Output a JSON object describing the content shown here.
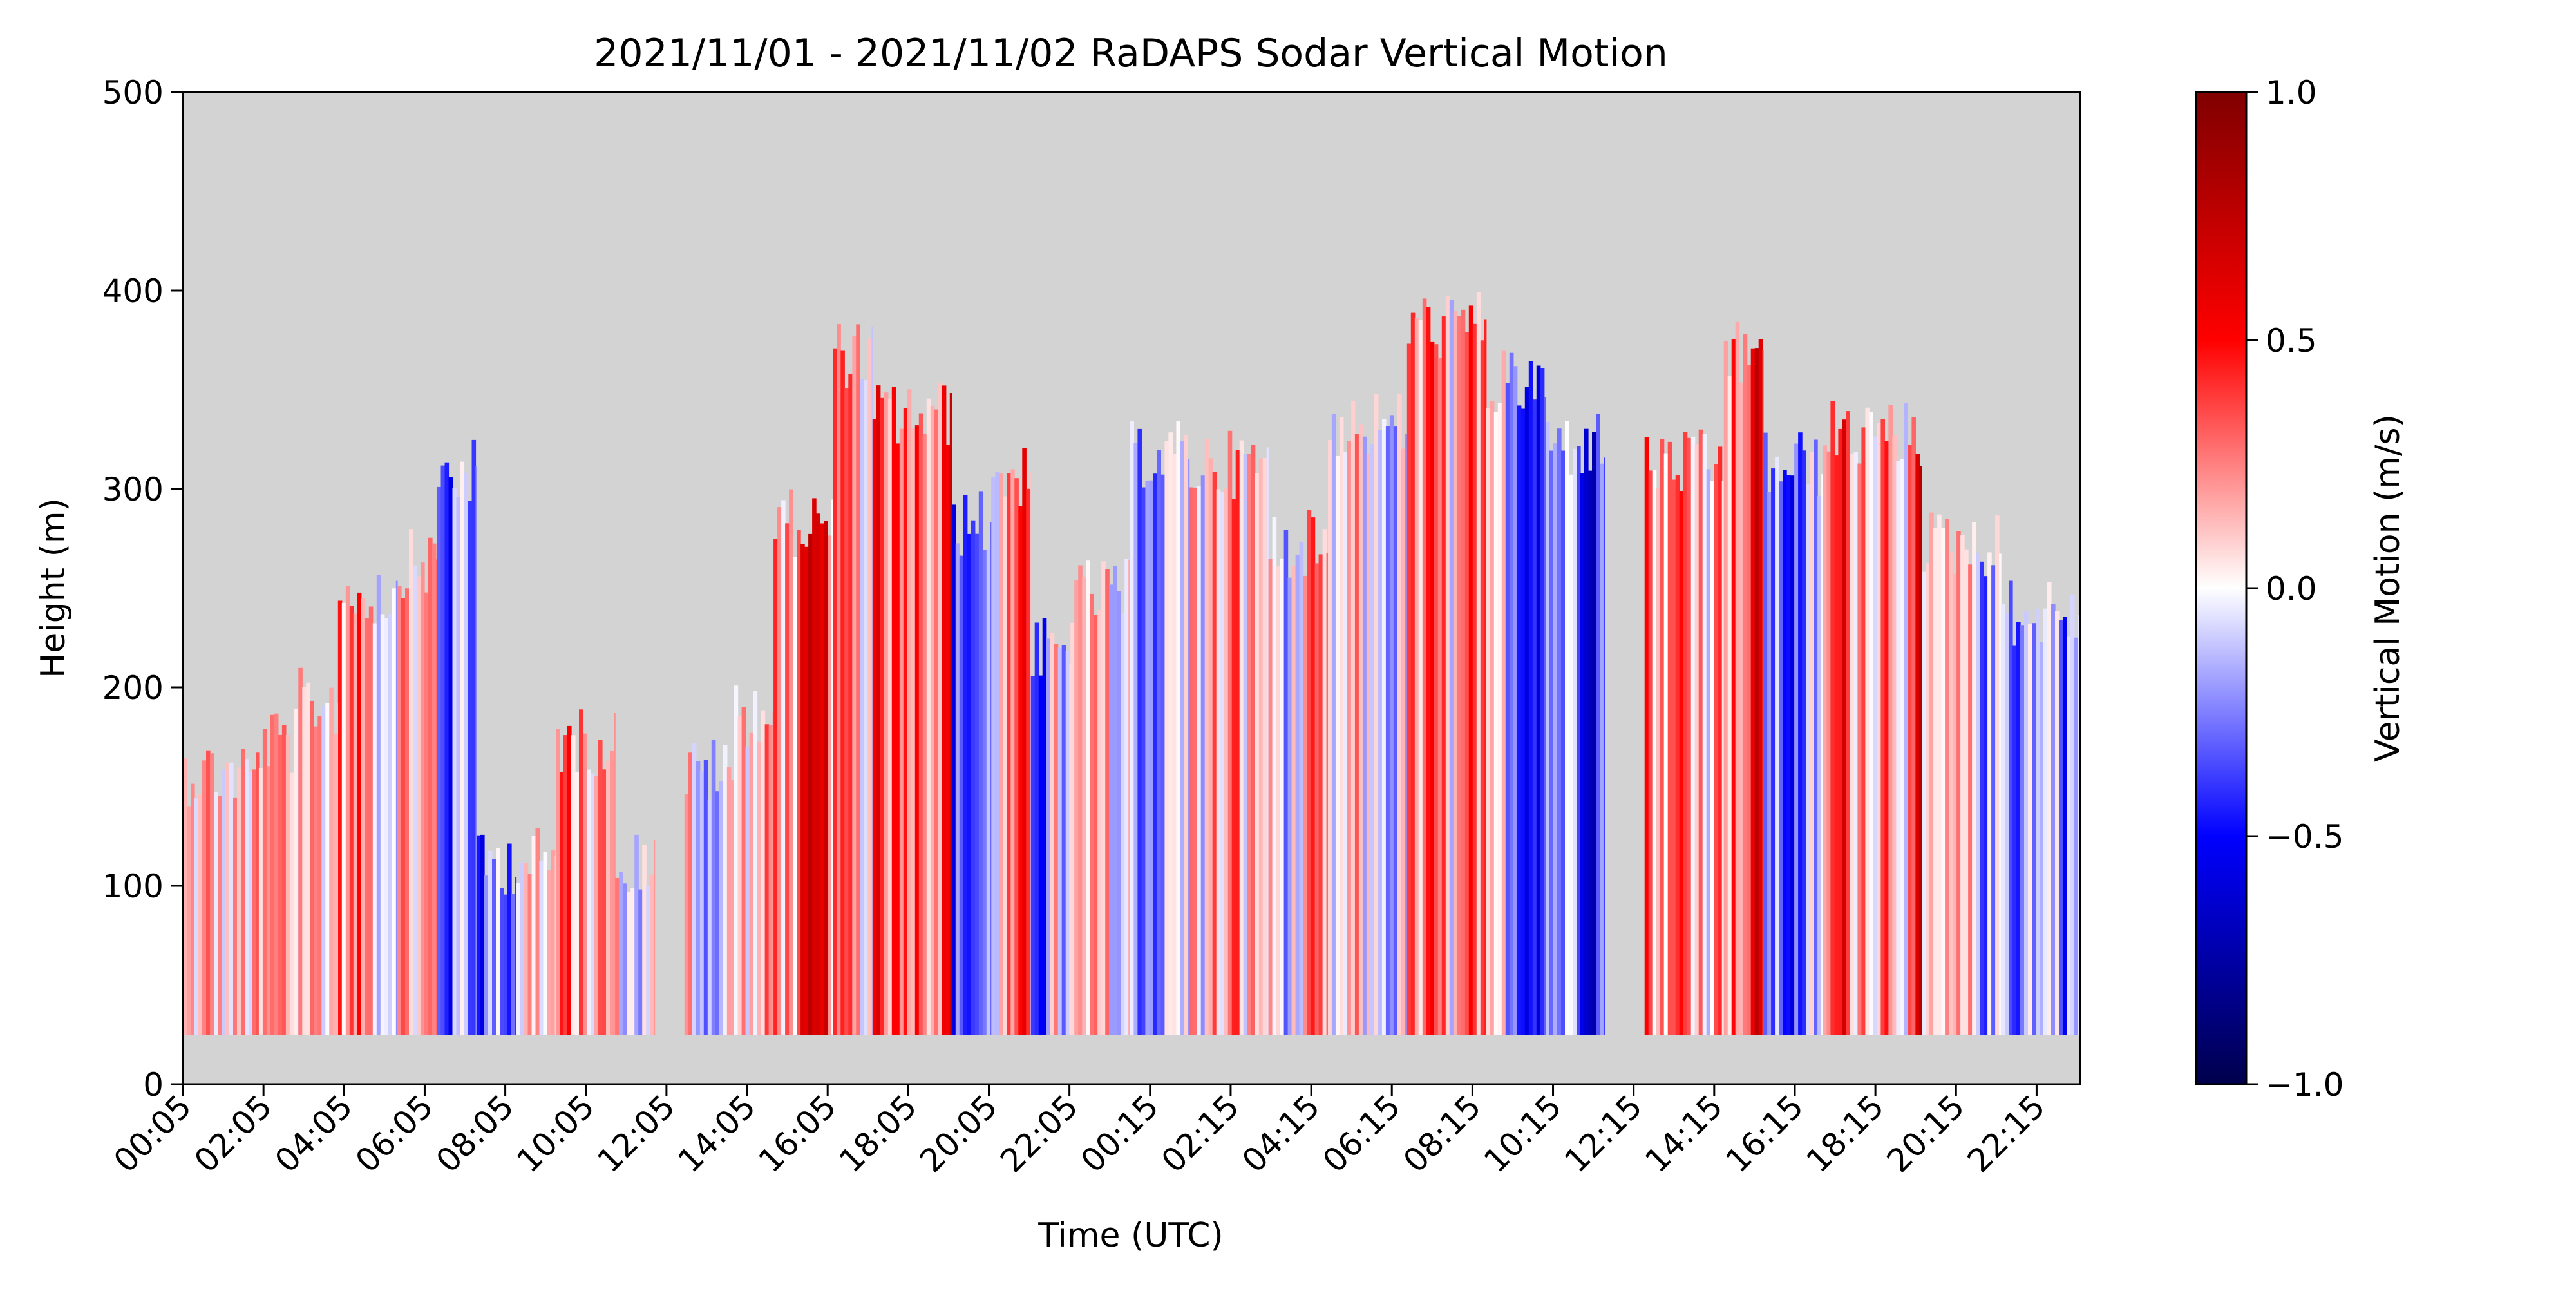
{
  "chart_data": {
    "type": "heatmap",
    "title": "2021/11/01 - 2021/11/02 RaDAPS Sodar Vertical Motion",
    "xlabel": "Time (UTC)",
    "ylabel": "Height (m)",
    "colorbar_label": "Vertical Motion (m/s)",
    "colormap": "seismic",
    "colors": {
      "no_data": "#d3d3d3",
      "cmap_min": "#00004c",
      "cmap_mid": "#ffffff",
      "cmap_max": "#800000"
    },
    "ylim": [
      0,
      500
    ],
    "y_ticks": [
      "0",
      "100",
      "200",
      "300",
      "400",
      "500"
    ],
    "clim": [
      -1.0,
      1.0
    ],
    "colorbar_ticks": [
      "1.0",
      "0.5",
      "0.0",
      "−0.5",
      "−1.0"
    ],
    "x_ticks": [
      "00:05",
      "02:05",
      "04:05",
      "06:05",
      "08:05",
      "10:05",
      "12:05",
      "14:05",
      "16:05",
      "18:05",
      "20:05",
      "22:05",
      "00:15",
      "02:15",
      "04:15",
      "06:15",
      "08:15",
      "10:15",
      "12:15",
      "14:15",
      "16:15",
      "18:15",
      "20:15",
      "22:15"
    ],
    "time_span_hours": [
      0.083,
      48.0
    ],
    "min_height_m": 25,
    "profiles": [
      {
        "start_h": 0.083,
        "end_h": 2.0,
        "top_m": 175,
        "mean": 0.05
      },
      {
        "start_h": 2.0,
        "end_h": 3.0,
        "top_m": 190,
        "mean": 0.1
      },
      {
        "start_h": 3.0,
        "end_h": 4.0,
        "top_m": 210,
        "mean": 0.15
      },
      {
        "start_h": 4.0,
        "end_h": 5.5,
        "top_m": 265,
        "mean": 0.2
      },
      {
        "start_h": 5.5,
        "end_h": 6.5,
        "top_m": 280,
        "mean": 0.1
      },
      {
        "start_h": 6.5,
        "end_h": 7.5,
        "top_m": 325,
        "mean": -0.2
      },
      {
        "start_h": 7.5,
        "end_h": 8.5,
        "top_m": 130,
        "mean": -0.2
      },
      {
        "start_h": 8.5,
        "end_h": 9.5,
        "top_m": 130,
        "mean": 0.1
      },
      {
        "start_h": 9.5,
        "end_h": 11.0,
        "top_m": 190,
        "mean": 0.15
      },
      {
        "start_h": 11.0,
        "end_h": 12.0,
        "top_m": 130,
        "mean": 0.0
      },
      {
        "start_h": 12.75,
        "end_h": 14.0,
        "top_m": 175,
        "mean": 0.0
      },
      {
        "start_h": 14.0,
        "end_h": 15.0,
        "top_m": 205,
        "mean": 0.1
      },
      {
        "start_h": 15.0,
        "end_h": 16.5,
        "top_m": 300,
        "mean": 0.3
      },
      {
        "start_h": 16.5,
        "end_h": 17.5,
        "top_m": 385,
        "mean": 0.1
      },
      {
        "start_h": 17.5,
        "end_h": 19.5,
        "top_m": 355,
        "mean": 0.5
      },
      {
        "start_h": 19.5,
        "end_h": 20.5,
        "top_m": 300,
        "mean": -0.3
      },
      {
        "start_h": 20.5,
        "end_h": 21.5,
        "top_m": 325,
        "mean": 0.1
      },
      {
        "start_h": 21.5,
        "end_h": 22.5,
        "top_m": 235,
        "mean": -0.15
      },
      {
        "start_h": 22.5,
        "end_h": 24.0,
        "top_m": 265,
        "mean": -0.05
      },
      {
        "start_h": 24.0,
        "end_h": 25.5,
        "top_m": 335,
        "mean": -0.1
      },
      {
        "start_h": 25.5,
        "end_h": 27.5,
        "top_m": 330,
        "mean": 0.1
      },
      {
        "start_h": 27.5,
        "end_h": 29.0,
        "top_m": 290,
        "mean": -0.05
      },
      {
        "start_h": 29.0,
        "end_h": 31.0,
        "top_m": 350,
        "mean": -0.05
      },
      {
        "start_h": 31.0,
        "end_h": 33.0,
        "top_m": 400,
        "mean": 0.1
      },
      {
        "start_h": 33.0,
        "end_h": 34.5,
        "top_m": 370,
        "mean": -0.2
      },
      {
        "start_h": 34.5,
        "end_h": 36.0,
        "top_m": 340,
        "mean": -0.15
      },
      {
        "start_h": 37.0,
        "end_h": 39.0,
        "top_m": 330,
        "mean": 0.25
      },
      {
        "start_h": 39.0,
        "end_h": 40.0,
        "top_m": 385,
        "mean": 0.4
      },
      {
        "start_h": 40.0,
        "end_h": 41.5,
        "top_m": 330,
        "mean": -0.3
      },
      {
        "start_h": 41.5,
        "end_h": 44.0,
        "top_m": 345,
        "mean": 0.35
      },
      {
        "start_h": 44.0,
        "end_h": 46.0,
        "top_m": 290,
        "mean": -0.1
      },
      {
        "start_h": 46.0,
        "end_h": 48.0,
        "top_m": 255,
        "mean": -0.1
      }
    ]
  }
}
